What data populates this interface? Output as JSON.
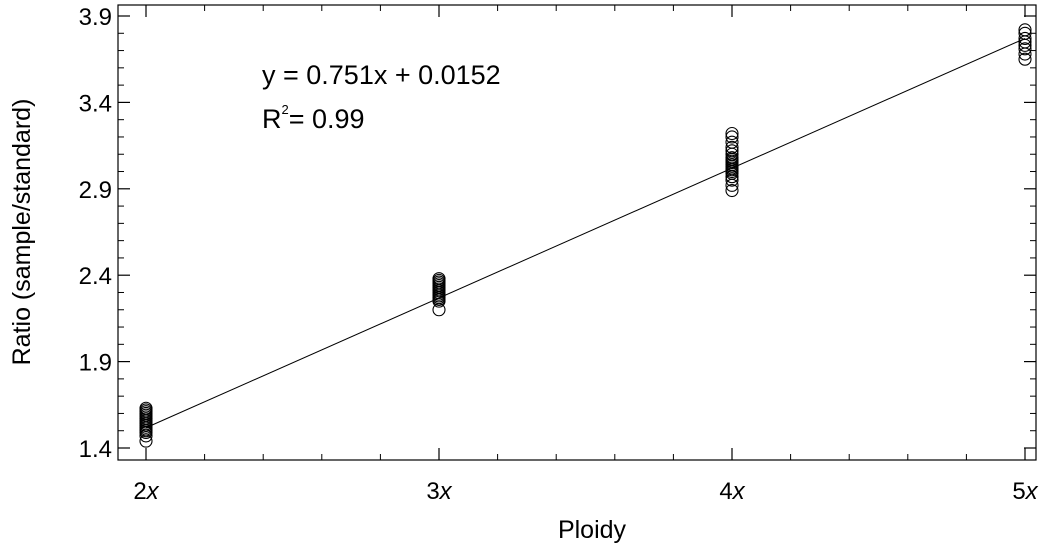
{
  "chart_data": {
    "type": "scatter",
    "xlabel": "Ploidy",
    "ylabel": "Ratio (sample/standard)",
    "xlim": [
      2,
      5
    ],
    "ylim": [
      1.4,
      3.9
    ],
    "x_ticks": [
      {
        "value": 2,
        "num": "2",
        "unit": "x"
      },
      {
        "value": 3,
        "num": "3",
        "unit": "x"
      },
      {
        "value": 4,
        "num": "4",
        "unit": "x"
      },
      {
        "value": 5,
        "num": "5",
        "unit": "x"
      }
    ],
    "y_ticks": [
      "1.4",
      "1.9",
      "2.4",
      "2.9",
      "3.4",
      "3.9"
    ],
    "grid": false,
    "annotation": {
      "equation": "y = 0.751x + 0.0152",
      "r2_prefix": "R",
      "r2_exp": "2",
      "r2_value": "= 0.99"
    },
    "regression": {
      "slope": 0.751,
      "intercept": 0.0152,
      "x_range": [
        2,
        5
      ]
    },
    "series": [
      {
        "x": 2,
        "values": [
          1.44,
          1.47,
          1.49,
          1.5,
          1.51,
          1.52,
          1.53,
          1.54,
          1.55,
          1.56,
          1.57,
          1.58,
          1.59,
          1.6,
          1.61,
          1.62,
          1.63
        ]
      },
      {
        "x": 3,
        "values": [
          2.2,
          2.25,
          2.26,
          2.27,
          2.28,
          2.29,
          2.3,
          2.31,
          2.32,
          2.33,
          2.34,
          2.35,
          2.36,
          2.37,
          2.38
        ]
      },
      {
        "x": 4,
        "values": [
          2.89,
          2.92,
          2.95,
          2.97,
          2.99,
          3.0,
          3.01,
          3.02,
          3.03,
          3.04,
          3.05,
          3.06,
          3.07,
          3.08,
          3.1,
          3.12,
          3.14,
          3.17,
          3.2,
          3.22
        ]
      },
      {
        "x": 5,
        "values": [
          3.65,
          3.68,
          3.71,
          3.73,
          3.75,
          3.77,
          3.8,
          3.82
        ]
      }
    ]
  }
}
